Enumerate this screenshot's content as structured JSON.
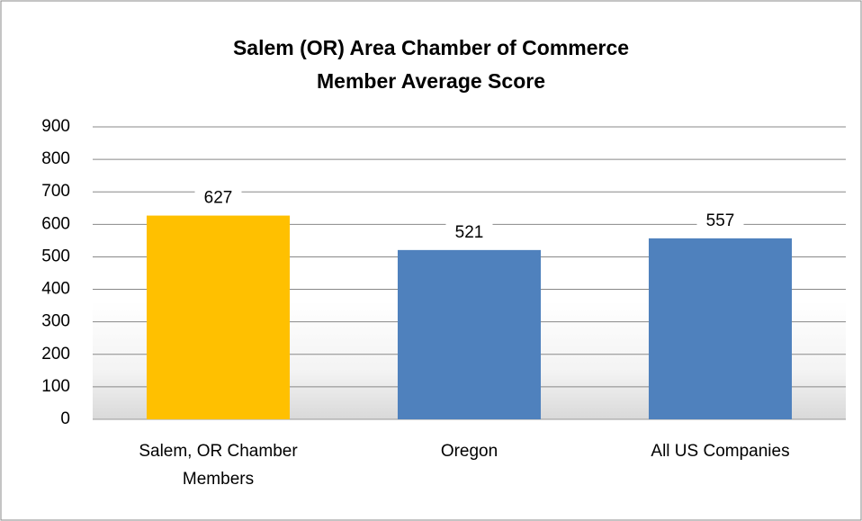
{
  "chart_data": {
    "type": "bar",
    "title": [
      "Salem (OR) Area Chamber of Commerce",
      "Member Average Score"
    ],
    "categories": [
      "Salem, OR Chamber Members",
      "Oregon",
      "All US Companies"
    ],
    "values": [
      627,
      521,
      557
    ],
    "colors": [
      "#ffc000",
      "#4f81bd",
      "#4f81bd"
    ],
    "ylim": [
      0,
      900
    ],
    "yticks": [
      0,
      100,
      200,
      300,
      400,
      500,
      600,
      700,
      800,
      900
    ],
    "grid": true
  }
}
